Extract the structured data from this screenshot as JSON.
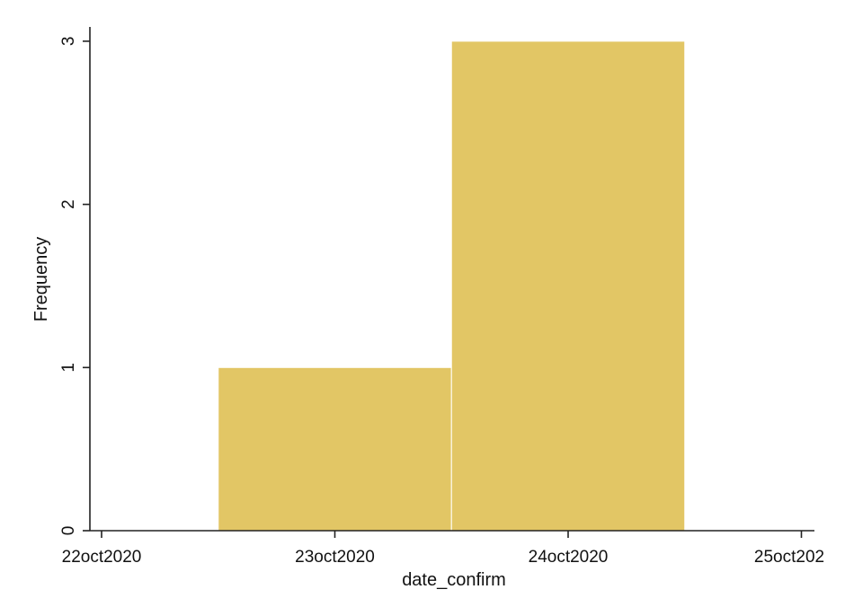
{
  "chart_data": {
    "type": "bar",
    "subtype": "histogram",
    "xlabel": "date_confirm",
    "ylabel": "Frequency",
    "x_ticks": [
      "22oct2020",
      "23oct2020",
      "24oct2020",
      "25oct202"
    ],
    "y_ticks": [
      "0",
      "1",
      "2",
      "3"
    ],
    "xlim": [
      "2020-10-22",
      "2020-10-25"
    ],
    "ylim": [
      0,
      3
    ],
    "bins": [
      {
        "start": "2020-10-22T12:00",
        "end": "2020-10-23T12:00",
        "label": "23oct2020",
        "value": 1
      },
      {
        "start": "2020-10-23T12:00",
        "end": "2020-10-24T12:00",
        "label": "24oct2020",
        "value": 3
      }
    ],
    "bar_color": "#e2c665",
    "grid": false,
    "legend": "none"
  }
}
